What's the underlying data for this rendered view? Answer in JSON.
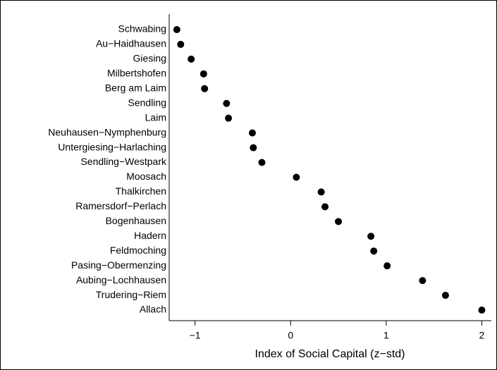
{
  "chart_data": {
    "type": "dot",
    "x_label": "Index of Social Capital (z−std)",
    "categories": [
      "Schwabing",
      "Au−Haidhausen",
      "Giesing",
      "Milbertshofen",
      "Berg am Laim",
      "Sendling",
      "Laim",
      "Neuhausen−Nymphenburg",
      "Untergiesing−Harlaching",
      "Sendling−Westpark",
      "Moosach",
      "Thalkirchen",
      "Ramersdorf−Perlach",
      "Bogenhausen",
      "Hadern",
      "Feldmoching",
      "Pasing−Obermenzing",
      "Aubing−Lochhausen",
      "Trudering−Riem",
      "Allach"
    ],
    "values": [
      -1.19,
      -1.15,
      -1.04,
      -0.91,
      -0.9,
      -0.67,
      -0.65,
      -0.4,
      -0.39,
      -0.3,
      0.06,
      0.32,
      0.36,
      0.5,
      0.84,
      0.87,
      1.01,
      1.38,
      1.62,
      2.0
    ],
    "color": "#000000",
    "xlim": [
      -1.27,
      2.1
    ],
    "xticks": [
      {
        "value": -1,
        "label": "−1"
      },
      0,
      1,
      2
    ]
  }
}
